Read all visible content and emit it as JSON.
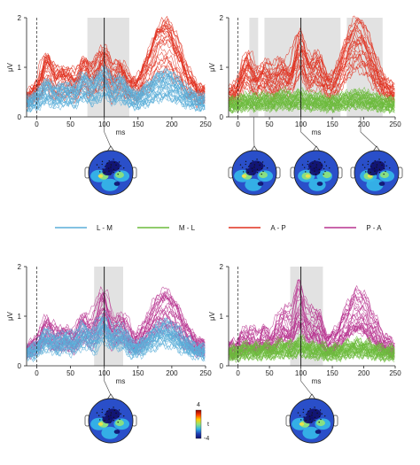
{
  "legend": [
    {
      "label": "L - M",
      "color": "#5aaed8"
    },
    {
      "label": "M - L",
      "color": "#6cbb3c"
    },
    {
      "label": "A - P",
      "color": "#e0301e"
    },
    {
      "label": "P - A",
      "color": "#b7338f"
    }
  ],
  "colorbar": {
    "max_label": "4",
    "mid_label": "t",
    "min_label": "-4",
    "colors": [
      "#8b0000",
      "#ff3b00",
      "#ffd000",
      "#8fe37a",
      "#2fb4e6",
      "#1f3fb5",
      "#10106e"
    ]
  },
  "topo_colors": {
    "dark": "#10106e",
    "blue": "#2a4fc9",
    "cyan": "#35b7e8",
    "green": "#8fe37a",
    "yellow": "#f2e34a",
    "red": "#e8402a"
  },
  "chart_data": [
    {
      "type": "line",
      "panel": "top-left",
      "xlabel": "ms",
      "ylabel": "μV",
      "xlim": [
        -15,
        250
      ],
      "ylim": [
        0,
        2
      ],
      "xticks": [
        0,
        50,
        100,
        150,
        200,
        250
      ],
      "yticks": [
        0,
        1,
        2
      ],
      "highlight_windows": [
        [
          75,
          137
        ]
      ],
      "marker_ms": 100,
      "series": [
        {
          "color": "#e0301e",
          "peak_times": [
            15,
            42,
            70,
            98,
            125,
            190
          ],
          "peak_heights": [
            0.95,
            0.75,
            0.9,
            1.05,
            0.8,
            1.5
          ],
          "base": 0.4
        },
        {
          "color": "#5aaed8",
          "peak_times": [
            15,
            42,
            70,
            98,
            125,
            190
          ],
          "peak_heights": [
            0.55,
            0.5,
            0.65,
            0.75,
            0.6,
            0.7
          ],
          "base": 0.3
        }
      ],
      "topomaps": [
        {
          "time_ms": 100
        }
      ]
    },
    {
      "type": "line",
      "panel": "top-right",
      "xlabel": "ms",
      "ylabel": "μV",
      "xlim": [
        -15,
        250
      ],
      "ylim": [
        0,
        2
      ],
      "xticks": [
        0,
        50,
        100,
        150,
        200,
        250
      ],
      "yticks": [
        0,
        1,
        2
      ],
      "highlight_windows": [
        [
          18,
          32
        ],
        [
          42,
          163
        ],
        [
          173,
          230
        ]
      ],
      "marker_ms": 100,
      "series": [
        {
          "color": "#e0301e",
          "peak_times": [
            15,
            42,
            70,
            98,
            125,
            190
          ],
          "peak_heights": [
            1.0,
            0.85,
            0.9,
            1.35,
            1.0,
            1.55
          ],
          "base": 0.45
        },
        {
          "color": "#6cbb3c",
          "peak_times": [
            15,
            42,
            70,
            98,
            125,
            190
          ],
          "peak_heights": [
            0.35,
            0.35,
            0.4,
            0.4,
            0.35,
            0.4
          ],
          "base": 0.28
        }
      ],
      "topomaps": [
        {
          "time_ms": 25
        },
        {
          "time_ms": 100
        },
        {
          "time_ms": 195
        }
      ]
    },
    {
      "type": "line",
      "panel": "bottom-left",
      "xlabel": "ms",
      "ylabel": "μV",
      "xlim": [
        -15,
        250
      ],
      "ylim": [
        0,
        2
      ],
      "xticks": [
        0,
        50,
        100,
        150,
        200,
        250
      ],
      "yticks": [
        0,
        1,
        2
      ],
      "highlight_windows": [
        [
          85,
          128
        ]
      ],
      "marker_ms": 100,
      "series": [
        {
          "color": "#b7338f",
          "peak_times": [
            15,
            42,
            70,
            98,
            125,
            190
          ],
          "peak_heights": [
            0.75,
            0.6,
            0.8,
            1.2,
            0.8,
            1.2
          ],
          "base": 0.35
        },
        {
          "color": "#5aaed8",
          "peak_times": [
            15,
            42,
            70,
            98,
            125,
            190
          ],
          "peak_heights": [
            0.6,
            0.55,
            0.7,
            0.85,
            0.65,
            0.75
          ],
          "base": 0.3
        }
      ],
      "topomaps": [
        {
          "time_ms": 100
        }
      ]
    },
    {
      "type": "line",
      "panel": "bottom-right",
      "xlabel": "ms",
      "ylabel": "μV",
      "xlim": [
        -15,
        250
      ],
      "ylim": [
        0,
        2
      ],
      "xticks": [
        0,
        50,
        100,
        150,
        200,
        250
      ],
      "yticks": [
        0,
        1,
        2
      ],
      "highlight_windows": [
        [
          83,
          135
        ]
      ],
      "marker_ms": 100,
      "series": [
        {
          "color": "#b7338f",
          "peak_times": [
            15,
            42,
            70,
            98,
            125,
            190
          ],
          "peak_heights": [
            0.6,
            0.6,
            0.9,
            1.3,
            0.9,
            1.2
          ],
          "base": 0.35
        },
        {
          "color": "#6cbb3c",
          "peak_times": [
            15,
            42,
            70,
            98,
            125,
            190
          ],
          "peak_heights": [
            0.35,
            0.35,
            0.4,
            0.45,
            0.35,
            0.4
          ],
          "base": 0.28
        }
      ],
      "topomaps": [
        {
          "time_ms": 100
        }
      ]
    }
  ]
}
